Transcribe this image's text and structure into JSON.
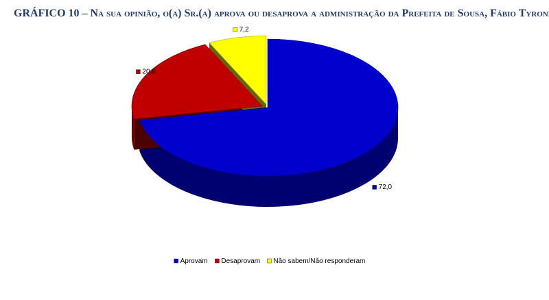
{
  "chart_data": {
    "type": "pie3d",
    "title": "GRÁFICO 10 – Na sua opinião, o(a) Sr.(a) aprova ou desaprova a administração da Prefeita de Sousa, Fábio Tyrone?",
    "categories": [
      "Aprovam",
      "Desaprovam",
      "Não sabem/Não responderam"
    ],
    "values": [
      72.0,
      20.8,
      7.2
    ],
    "value_labels": [
      "72,0",
      "20,8",
      "7,2"
    ],
    "colors": [
      "#0000cc",
      "#c00000",
      "#ffff00"
    ]
  }
}
